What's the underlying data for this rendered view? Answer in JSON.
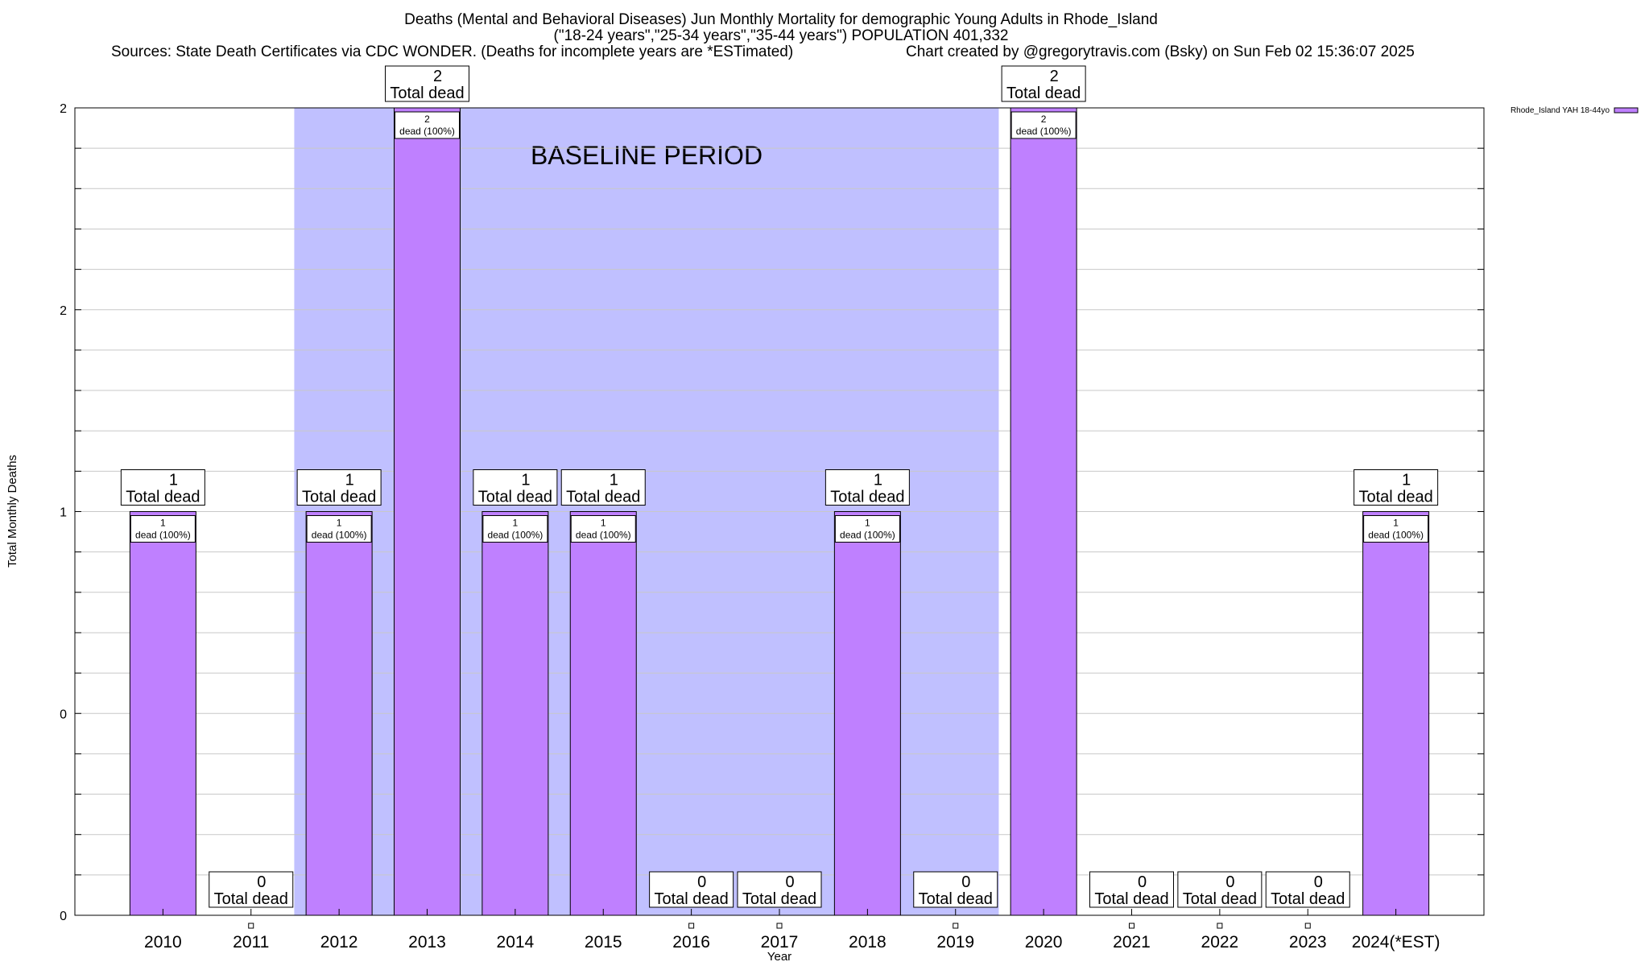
{
  "title": {
    "line1": "Deaths (Mental and Behavioral Diseases) Jun Monthly Mortality for demographic Young Adults in Rhode_Island",
    "line2": "(\"18-24 years\",\"25-34 years\",\"35-44 years\") POPULATION 401,332",
    "line3_source": "Sources: State Death Certificates via CDC WONDER. (Deaths for incomplete years are *ESTimated)",
    "line3_credit": "Chart created by @gregorytravis.com (Bsky) on Sun Feb 02 15:36:07 2025"
  },
  "chart_data": {
    "type": "bar",
    "xlabel": "Year",
    "ylabel": "Total Monthly Deaths",
    "ylim": [
      0,
      2
    ],
    "y_tick_labels": [
      "0",
      "0",
      "1",
      "2",
      "2"
    ],
    "categories": [
      "2010",
      "2011",
      "2012",
      "2013",
      "2014",
      "2015",
      "2016",
      "2017",
      "2018",
      "2019",
      "2020",
      "2021",
      "2022",
      "2023",
      "2024(*EST)"
    ],
    "series": [
      {
        "name": "Rhode_Island YAH 18-44yo",
        "color": "#bf80ff",
        "values": [
          1,
          0,
          1,
          2,
          1,
          1,
          0,
          0,
          1,
          0,
          2,
          0,
          0,
          0,
          1
        ]
      }
    ],
    "total_label_suffix": "Total dead",
    "segment_label_suffix": "dead (100%)",
    "baseline": {
      "label": "BASELINE PERIOD",
      "from": "2012",
      "to": "2019",
      "color": "#c0c0ff"
    },
    "legend": {
      "label": "Rhode_Island YAH 18-44yo",
      "placement": "top-right"
    },
    "grid": true
  }
}
